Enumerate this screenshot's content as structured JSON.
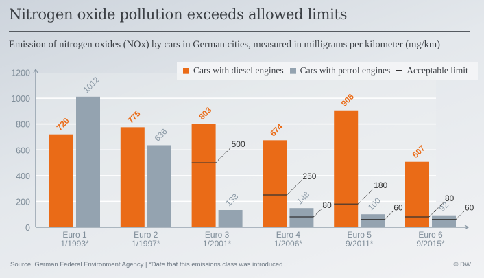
{
  "header": {
    "title": "Nitrogen oxide pollution exceeds allowed limits",
    "subtitle": "Emission of nitrogen oxides (NOx) by cars in German cities, measured in milligrams per kilometer (mg/km)"
  },
  "footer": {
    "source": "Source: German Federal Environment Agency | *Date that this emissions class was introduced",
    "credit": "© DW"
  },
  "colors": {
    "diesel": "#ea6b17",
    "petrol": "#94a3b0",
    "limit": "#333333",
    "axis": "#8796a3",
    "grid": "#ffffff",
    "tick_text": "#7f8d99"
  },
  "chart_data": {
    "type": "bar",
    "title": "Nitrogen oxide pollution exceeds allowed limits",
    "subtitle": "Emission of nitrogen oxides (NOx) by cars in German cities, measured in milligrams per kilometer (mg/km)",
    "xlabel": "",
    "ylabel": "",
    "ylim": [
      0,
      1200
    ],
    "yticks": [
      0,
      200,
      400,
      600,
      800,
      1000,
      1200
    ],
    "grid": true,
    "legend_position": "top-right",
    "categories": [
      {
        "name": "Euro 1",
        "date": "1/1993*"
      },
      {
        "name": "Euro 2",
        "date": "1/1997*"
      },
      {
        "name": "Euro 3",
        "date": "1/2001*"
      },
      {
        "name": "Euro 4",
        "date": "1/2006*"
      },
      {
        "name": "Euro 5",
        "date": "9/2011*"
      },
      {
        "name": "Euro 6",
        "date": "9/2015*"
      }
    ],
    "series": [
      {
        "name": "Cars with diesel engines",
        "key": "diesel",
        "values": [
          720,
          775,
          803,
          674,
          906,
          507
        ],
        "limits": [
          null,
          null,
          500,
          250,
          180,
          80
        ]
      },
      {
        "name": "Cars with petrol engines",
        "key": "petrol",
        "values": [
          1012,
          636,
          133,
          148,
          100,
          92
        ],
        "limits": [
          null,
          null,
          null,
          80,
          60,
          60
        ]
      }
    ],
    "legend": [
      {
        "label": "Cars with diesel engines",
        "type": "swatch",
        "key": "diesel"
      },
      {
        "label": "Cars with petrol engines",
        "type": "swatch",
        "key": "petrol"
      },
      {
        "label": "Acceptable limit",
        "type": "line",
        "key": "limit"
      }
    ]
  }
}
